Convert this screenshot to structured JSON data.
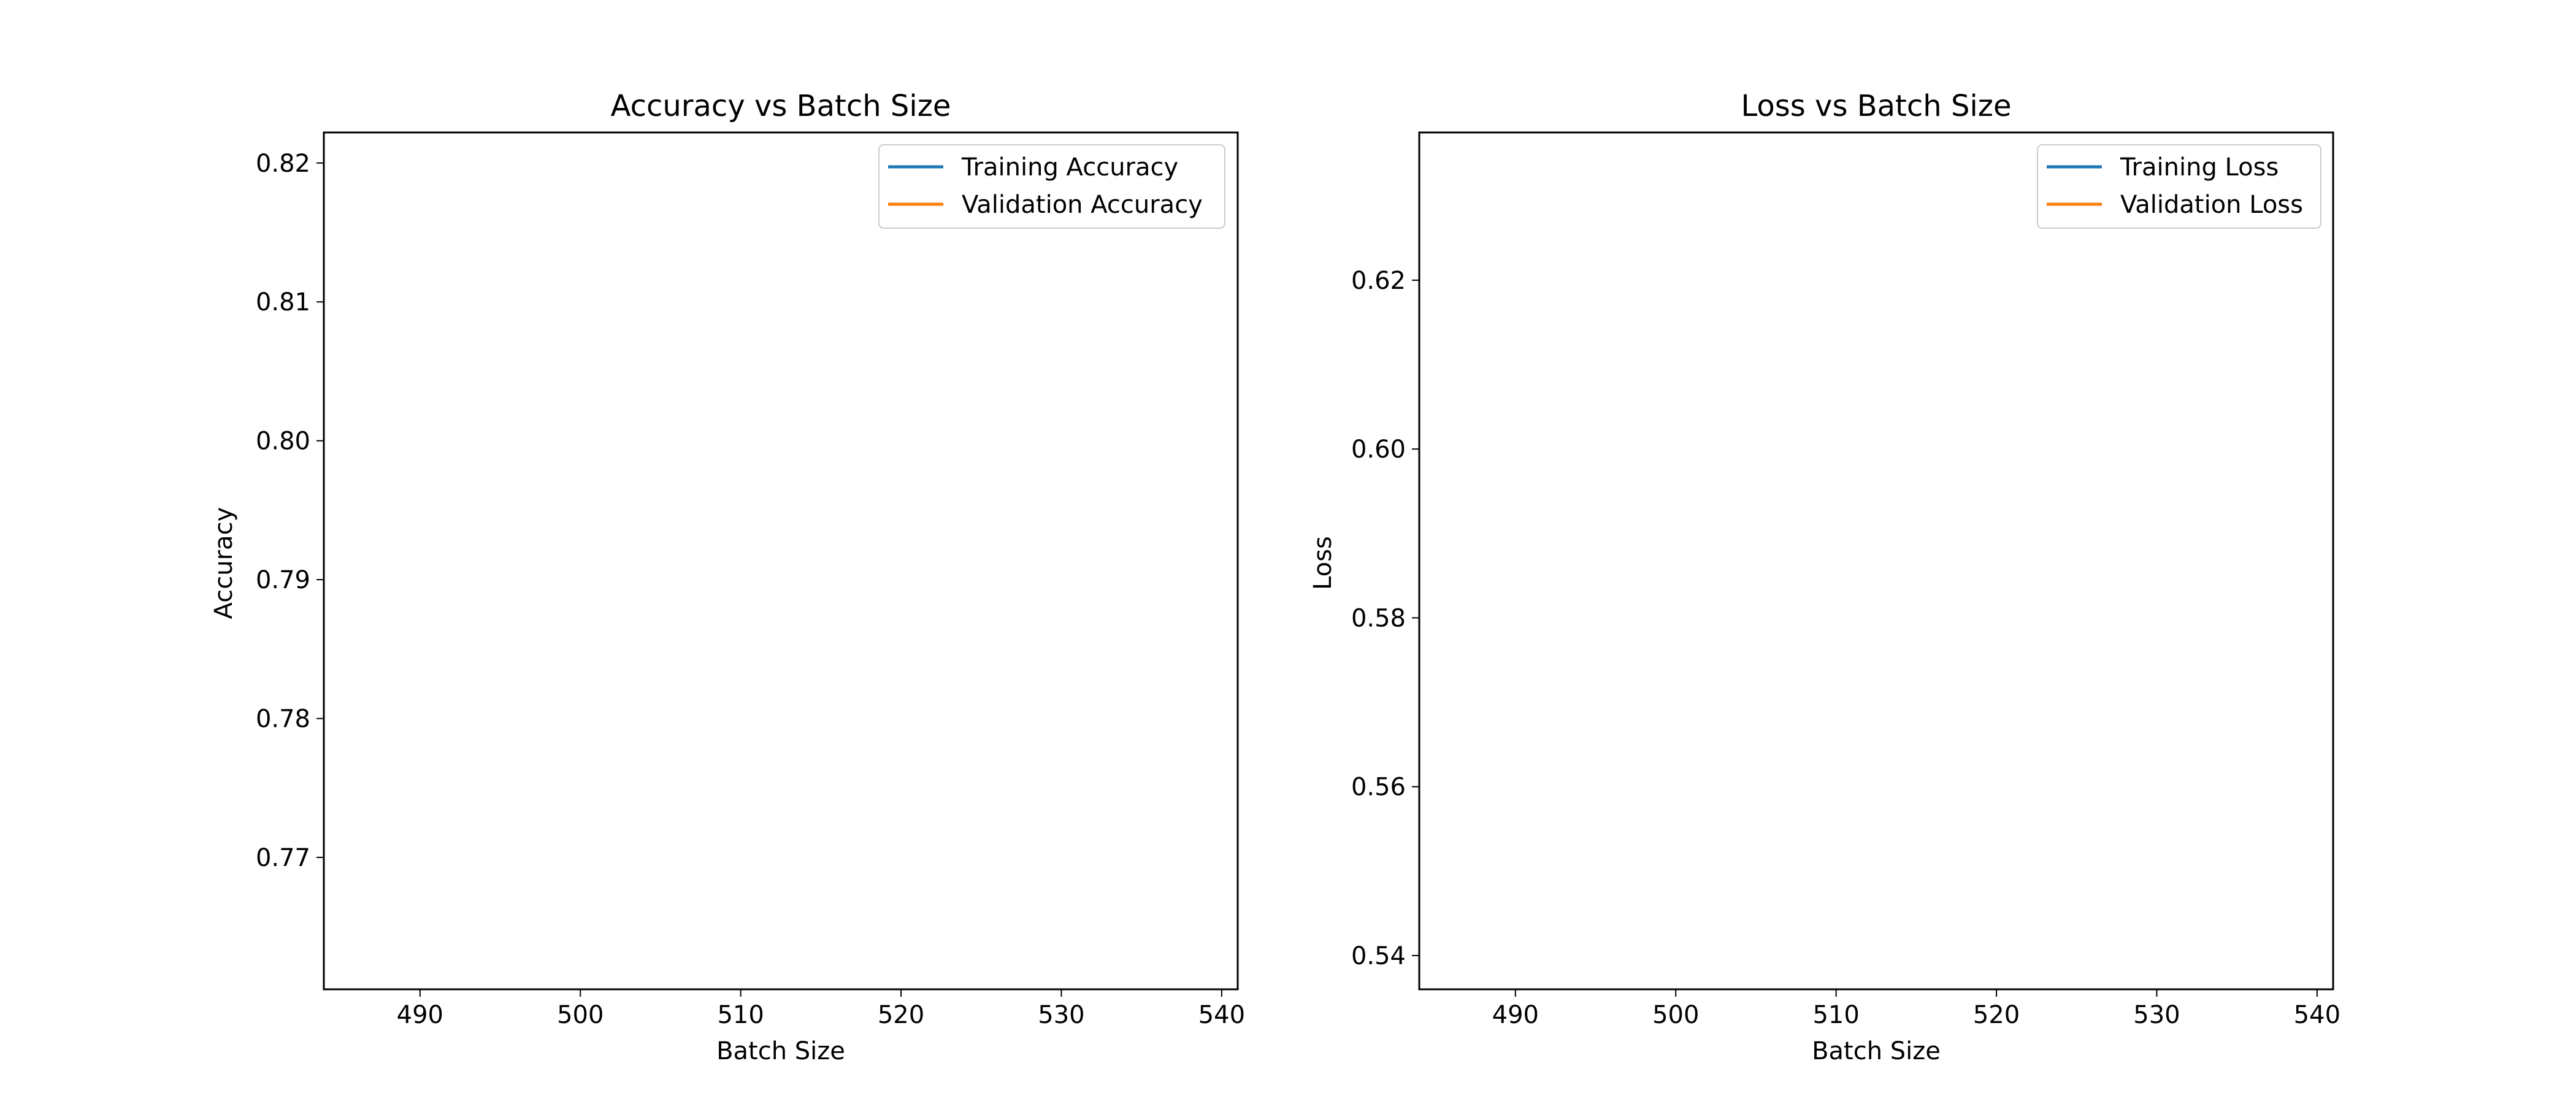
{
  "chart_data": [
    {
      "type": "line",
      "title": "Accuracy vs Batch Size",
      "xlabel": "Batch Size",
      "ylabel": "Accuracy",
      "xlim": [
        484,
        541
      ],
      "ylim": [
        0.7605,
        0.8222
      ],
      "xticks": [
        490,
        500,
        510,
        520,
        530,
        540
      ],
      "yticks": [
        0.77,
        0.78,
        0.79,
        0.8,
        0.81,
        0.82
      ],
      "xtick_labels": [
        "490",
        "500",
        "510",
        "520",
        "530",
        "540"
      ],
      "ytick_labels": [
        "0.77",
        "0.78",
        "0.79",
        "0.80",
        "0.81",
        "0.82"
      ],
      "grid": false,
      "legend_position": "upper right",
      "series": [
        {
          "name": "Training Accuracy",
          "color": "#1f77b4",
          "x": [],
          "y": []
        },
        {
          "name": "Validation Accuracy",
          "color": "#ff7f0e",
          "x": [],
          "y": []
        }
      ]
    },
    {
      "type": "line",
      "title": "Loss vs Batch Size",
      "xlabel": "Batch Size",
      "ylabel": "Loss",
      "xlim": [
        484,
        541
      ],
      "ylim": [
        0.536,
        0.6375
      ],
      "xticks": [
        490,
        500,
        510,
        520,
        530,
        540
      ],
      "yticks": [
        0.54,
        0.56,
        0.58,
        0.6,
        0.62
      ],
      "xtick_labels": [
        "490",
        "500",
        "510",
        "520",
        "530",
        "540"
      ],
      "ytick_labels": [
        "0.54",
        "0.56",
        "0.58",
        "0.60",
        "0.62"
      ],
      "grid": false,
      "legend_position": "upper right",
      "series": [
        {
          "name": "Training Loss",
          "color": "#1f77b4",
          "x": [],
          "y": []
        },
        {
          "name": "Validation Loss",
          "color": "#ff7f0e",
          "x": [],
          "y": []
        }
      ]
    }
  ]
}
